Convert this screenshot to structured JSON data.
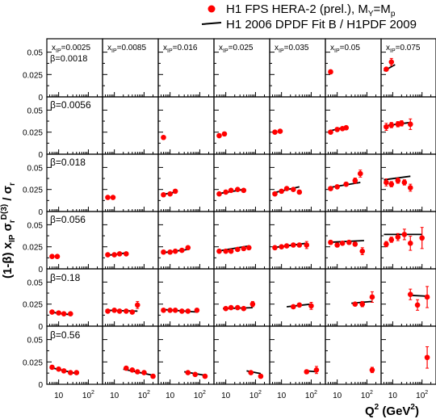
{
  "legend": {
    "data_label": "H1 FPS HERA-2 (prel.),  M",
    "data_label_sub": "Y",
    "data_label_tail": "=M",
    "data_label_sub2": "p",
    "fit_label": "H1 2006 DPDF Fit B / H1PDF 2009"
  },
  "axes": {
    "x_title": "Q",
    "x_title_sup": "2",
    "x_title_tail": " (GeV",
    "x_title_sup2": "2",
    "x_title_end": ")",
    "y_title": "(1-β) x",
    "y_title_sub": "IP",
    "y_title_mid": " σ",
    "y_title_sub2": "r",
    "y_title_sup2": "D(3)",
    "y_title_end": " / σ",
    "y_title_sub3": "r",
    "y_ticks": [
      "0.05",
      "0.025",
      "0"
    ],
    "x_ticks": [
      "10",
      "10",
      "10",
      "10",
      "10",
      "10",
      "10",
      "10",
      "10",
      "10",
      "10",
      "10",
      "10",
      "10"
    ],
    "x_tick_sups": [
      "",
      "2"
    ]
  },
  "colors": {
    "data": "#ff0000",
    "fit": "#000000",
    "frame": "#000000"
  },
  "xip_labels": [
    "0.0025",
    "0.0085",
    "0.016",
    "0.025",
    "0.035",
    "0.05",
    "0.075"
  ],
  "xip_prefix": "x",
  "xip_sub": "IP",
  "xip_eq": "=",
  "beta_labels": [
    "β=0.0018",
    "β=0.0056",
    "β=0.018",
    "β=0.056",
    "β=0.18",
    "β=0.56"
  ],
  "chart_data": {
    "type": "scatter",
    "layout": "grid 6 rows (beta) x 7 columns (x_IP)",
    "x_scale": "log",
    "xlim": [
      4,
      300
    ],
    "ylim": [
      0,
      0.065
    ],
    "columns_xip": [
      0.0025,
      0.0085,
      0.016,
      0.025,
      0.035,
      0.05,
      0.075
    ],
    "rows_beta": [
      0.0018,
      0.0056,
      0.018,
      0.056,
      0.18,
      0.56
    ],
    "series": [
      {
        "name": "H1 FPS HERA-2 (prel.)",
        "kind": "data"
      },
      {
        "name": "H1 2006 DPDF Fit B / H1PDF 2009",
        "kind": "fit"
      }
    ],
    "panels": [
      {
        "row": 0,
        "col": 5,
        "points": [
          [
            6,
            0.028,
            0
          ]
        ],
        "fit": []
      },
      {
        "row": 0,
        "col": 6,
        "points": [
          [
            6,
            0.031,
            0.002
          ],
          [
            9,
            0.039,
            0.004
          ]
        ],
        "fit": [
          [
            5,
            0.029
          ],
          [
            12,
            0.036
          ]
        ]
      },
      {
        "row": 1,
        "col": 2,
        "points": [
          [
            6,
            0.019,
            0
          ]
        ],
        "fit": []
      },
      {
        "row": 1,
        "col": 3,
        "points": [
          [
            6,
            0.021,
            0
          ],
          [
            9,
            0.023,
            0
          ]
        ],
        "fit": []
      },
      {
        "row": 1,
        "col": 4,
        "points": [
          [
            6,
            0.025,
            0
          ],
          [
            9,
            0.026,
            0
          ]
        ],
        "fit": []
      },
      {
        "row": 1,
        "col": 5,
        "points": [
          [
            6,
            0.025,
            0.002
          ],
          [
            10,
            0.028,
            0.002
          ],
          [
            15,
            0.029,
            0.002
          ],
          [
            20,
            0.03,
            0.002
          ]
        ],
        "fit": [
          [
            5,
            0.026
          ],
          [
            20,
            0.031
          ]
        ]
      },
      {
        "row": 1,
        "col": 6,
        "points": [
          [
            6,
            0.031,
            0.004
          ],
          [
            9,
            0.033,
            0.003
          ],
          [
            15,
            0.034,
            0.003
          ],
          [
            20,
            0.035,
            0.003
          ],
          [
            40,
            0.034,
            0.006
          ]
        ],
        "fit": [
          [
            5,
            0.032
          ],
          [
            40,
            0.036
          ]
        ]
      },
      {
        "row": 2,
        "col": 1,
        "points": [
          [
            6,
            0.016,
            0
          ],
          [
            9,
            0.016,
            0
          ]
        ],
        "fit": []
      },
      {
        "row": 2,
        "col": 2,
        "points": [
          [
            6,
            0.019,
            0
          ],
          [
            10,
            0.02,
            0
          ],
          [
            15,
            0.023,
            0
          ]
        ],
        "fit": [
          [
            5,
            0.019
          ],
          [
            15,
            0.022
          ]
        ]
      },
      {
        "row": 2,
        "col": 3,
        "points": [
          [
            6,
            0.02,
            0.001
          ],
          [
            10,
            0.022,
            0.001
          ],
          [
            15,
            0.024,
            0.001
          ],
          [
            25,
            0.025,
            0.001
          ],
          [
            40,
            0.024,
            0.001
          ]
        ],
        "fit": [
          [
            5,
            0.02
          ],
          [
            40,
            0.025
          ]
        ]
      },
      {
        "row": 2,
        "col": 4,
        "points": [
          [
            6,
            0.02,
            0.001
          ],
          [
            10,
            0.023,
            0.001
          ],
          [
            15,
            0.026,
            0.001
          ],
          [
            25,
            0.025,
            0.001
          ],
          [
            40,
            0.022,
            0.002
          ]
        ],
        "fit": [
          [
            5,
            0.021
          ],
          [
            40,
            0.028
          ]
        ]
      },
      {
        "row": 2,
        "col": 5,
        "points": [
          [
            6,
            0.026,
            0.002
          ],
          [
            10,
            0.028,
            0.002
          ],
          [
            20,
            0.031,
            0.002
          ],
          [
            40,
            0.035,
            0.003
          ],
          [
            60,
            0.043,
            0.004
          ]
        ],
        "fit": [
          [
            5,
            0.027
          ],
          [
            60,
            0.033
          ]
        ]
      },
      {
        "row": 2,
        "col": 6,
        "points": [
          [
            6,
            0.033,
            0.004
          ],
          [
            9,
            0.031,
            0.003
          ],
          [
            15,
            0.035,
            0.003
          ],
          [
            25,
            0.033,
            0.003
          ],
          [
            40,
            0.027,
            0.004
          ]
        ],
        "fit": [
          [
            5,
            0.036
          ],
          [
            40,
            0.04
          ]
        ]
      },
      {
        "row": 3,
        "col": 0,
        "points": [
          [
            6,
            0.014,
            0
          ],
          [
            9,
            0.014,
            0
          ]
        ],
        "fit": []
      },
      {
        "row": 3,
        "col": 1,
        "points": [
          [
            6,
            0.016,
            0
          ],
          [
            10,
            0.016,
            0
          ],
          [
            15,
            0.017,
            0
          ],
          [
            25,
            0.017,
            0
          ]
        ],
        "fit": [
          [
            5,
            0.015
          ],
          [
            25,
            0.018
          ]
        ]
      },
      {
        "row": 3,
        "col": 2,
        "points": [
          [
            6,
            0.019,
            0
          ],
          [
            10,
            0.019,
            0
          ],
          [
            15,
            0.02,
            0
          ],
          [
            25,
            0.021,
            0
          ],
          [
            40,
            0.024,
            0
          ]
        ],
        "fit": [
          [
            5,
            0.018
          ],
          [
            40,
            0.022
          ]
        ]
      },
      {
        "row": 3,
        "col": 3,
        "points": [
          [
            6,
            0.02,
            0
          ],
          [
            10,
            0.02,
            0
          ],
          [
            15,
            0.02,
            0
          ],
          [
            25,
            0.022,
            0
          ],
          [
            40,
            0.023,
            0
          ],
          [
            60,
            0.024,
            0
          ]
        ],
        "fit": [
          [
            5,
            0.02
          ],
          [
            60,
            0.026
          ]
        ]
      },
      {
        "row": 3,
        "col": 4,
        "points": [
          [
            6,
            0.024,
            0.001
          ],
          [
            10,
            0.025,
            0.001
          ],
          [
            15,
            0.026,
            0.001
          ],
          [
            25,
            0.027,
            0.001
          ],
          [
            40,
            0.027,
            0.002
          ],
          [
            70,
            0.027,
            0.004
          ]
        ],
        "fit": [
          [
            5,
            0.024
          ],
          [
            70,
            0.029
          ]
        ]
      },
      {
        "row": 3,
        "col": 5,
        "points": [
          [
            6,
            0.03,
            0.002
          ],
          [
            10,
            0.027,
            0.002
          ],
          [
            15,
            0.029,
            0.002
          ],
          [
            25,
            0.03,
            0.002
          ],
          [
            40,
            0.028,
            0.002
          ],
          [
            70,
            0.02,
            0.004
          ]
        ],
        "fit": [
          [
            5,
            0.03
          ],
          [
            80,
            0.032
          ]
        ]
      },
      {
        "row": 3,
        "col": 6,
        "points": [
          [
            6,
            0.028,
            0.003
          ],
          [
            9,
            0.033,
            0.003
          ],
          [
            15,
            0.036,
            0.004
          ],
          [
            25,
            0.039,
            0.006
          ],
          [
            40,
            0.029,
            0.008
          ],
          [
            100,
            0.035,
            0.012
          ]
        ],
        "fit": [
          [
            5,
            0.039
          ],
          [
            100,
            0.039
          ]
        ]
      },
      {
        "row": 4,
        "col": 0,
        "points": [
          [
            6,
            0.016,
            0
          ],
          [
            10,
            0.015,
            0
          ],
          [
            15,
            0.014,
            0
          ],
          [
            25,
            0.014,
            0
          ]
        ],
        "fit": [
          [
            5,
            0.016
          ],
          [
            25,
            0.013
          ]
        ]
      },
      {
        "row": 4,
        "col": 1,
        "points": [
          [
            6,
            0.017,
            0
          ],
          [
            10,
            0.018,
            0
          ],
          [
            15,
            0.017,
            0
          ],
          [
            25,
            0.017,
            0
          ],
          [
            40,
            0.016,
            0
          ],
          [
            60,
            0.024,
            0.004
          ]
        ],
        "fit": [
          [
            5,
            0.018
          ],
          [
            60,
            0.017
          ]
        ]
      },
      {
        "row": 4,
        "col": 2,
        "points": [
          [
            6,
            0.018,
            0
          ],
          [
            10,
            0.018,
            0
          ],
          [
            15,
            0.018,
            0
          ],
          [
            25,
            0.017,
            0
          ],
          [
            40,
            0.017,
            0
          ],
          [
            80,
            0.018,
            0.002
          ]
        ],
        "fit": [
          [
            5,
            0.019
          ],
          [
            80,
            0.016
          ]
        ]
      },
      {
        "row": 4,
        "col": 3,
        "points": [
          [
            10,
            0.02,
            0
          ],
          [
            15,
            0.021,
            0
          ],
          [
            25,
            0.021,
            0
          ],
          [
            40,
            0.02,
            0
          ],
          [
            80,
            0.025,
            0.003
          ]
        ],
        "fit": [
          [
            8,
            0.02
          ],
          [
            80,
            0.021
          ]
        ]
      },
      {
        "row": 4,
        "col": 4,
        "points": [
          [
            25,
            0.022,
            0.001
          ],
          [
            40,
            0.024,
            0.002
          ],
          [
            100,
            0.023,
            0.004
          ]
        ],
        "fit": [
          [
            15,
            0.022
          ],
          [
            100,
            0.025
          ]
        ]
      },
      {
        "row": 4,
        "col": 5,
        "points": [
          [
            40,
            0.025,
            0.002
          ],
          [
            70,
            0.025,
            0.003
          ],
          [
            150,
            0.033,
            0.006
          ]
        ],
        "fit": [
          [
            30,
            0.026
          ],
          [
            150,
            0.028
          ]
        ]
      },
      {
        "row": 4,
        "col": 6,
        "points": [
          [
            40,
            0.036,
            0.006
          ],
          [
            70,
            0.024,
            0.006
          ],
          [
            150,
            0.033,
            0.012
          ]
        ],
        "fit": [
          [
            40,
            0.035
          ],
          [
            150,
            0.034
          ]
        ]
      },
      {
        "row": 5,
        "col": 0,
        "points": [
          [
            6,
            0.019,
            0
          ],
          [
            10,
            0.017,
            0
          ],
          [
            15,
            0.015,
            0
          ],
          [
            25,
            0.013,
            0
          ],
          [
            40,
            0.013,
            0
          ]
        ],
        "fit": [
          [
            5,
            0.019
          ],
          [
            40,
            0.012
          ]
        ]
      },
      {
        "row": 5,
        "col": 1,
        "points": [
          [
            25,
            0.018,
            0
          ],
          [
            40,
            0.016,
            0
          ],
          [
            60,
            0.014,
            0
          ],
          [
            100,
            0.013,
            0.001
          ],
          [
            200,
            0.009,
            0.002
          ]
        ],
        "fit": [
          [
            20,
            0.017
          ],
          [
            200,
            0.01
          ]
        ]
      },
      {
        "row": 5,
        "col": 2,
        "points": [
          [
            40,
            0.013,
            0.001
          ],
          [
            70,
            0.011,
            0.001
          ],
          [
            150,
            0.009,
            0.002
          ]
        ],
        "fit": [
          [
            30,
            0.014
          ],
          [
            150,
            0.01
          ]
        ]
      },
      {
        "row": 5,
        "col": 3,
        "points": [
          [
            70,
            0.013,
            0.001
          ],
          [
            150,
            0.009,
            0.002
          ]
        ],
        "fit": [
          [
            50,
            0.015
          ],
          [
            150,
            0.012
          ]
        ]
      },
      {
        "row": 5,
        "col": 4,
        "points": [
          [
            70,
            0.014,
            0.002
          ],
          [
            150,
            0.016,
            0.004
          ]
        ],
        "fit": [
          [
            70,
            0.015
          ],
          [
            150,
            0.014
          ]
        ]
      },
      {
        "row": 5,
        "col": 5,
        "points": [
          [
            150,
            0.016,
            0.003
          ]
        ],
        "fit": []
      },
      {
        "row": 5,
        "col": 6,
        "points": [
          [
            150,
            0.03,
            0.012
          ]
        ],
        "fit": []
      }
    ]
  }
}
